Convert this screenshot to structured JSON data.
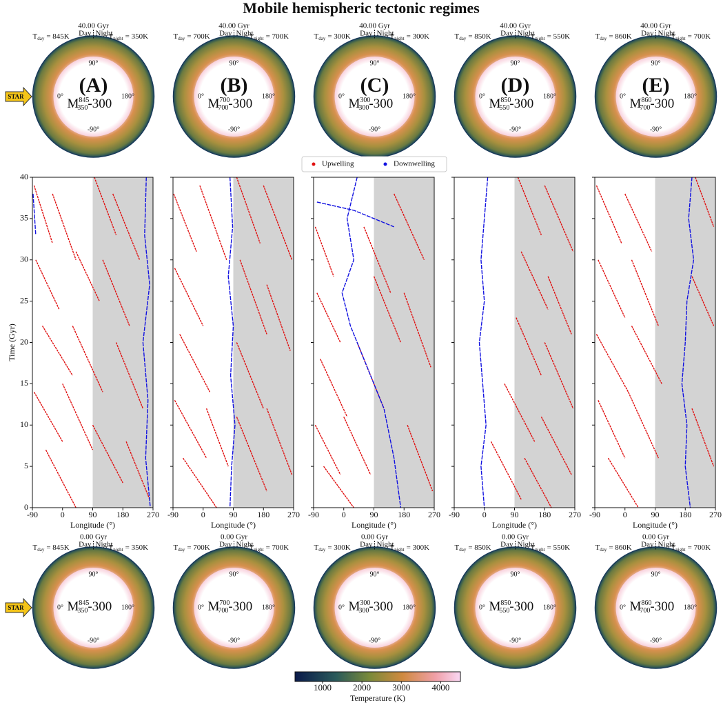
{
  "title": "Mobile hemispheric tectonic regimes",
  "annulus_text": {
    "time_top": "40.00 Gyr",
    "time_bottom": "0.00 Gyr",
    "day": "Day",
    "night": "Night",
    "t": "T",
    "day_sub": "day",
    "night_sub": "night",
    "m": "M",
    "model_suffix": "-300",
    "angles": [
      "90°",
      "0°",
      "180°",
      "-90°"
    ],
    "star": "STAR"
  },
  "colorbar": {
    "label": "Temperature (K)",
    "lim": [
      300,
      4500
    ],
    "ticks": [
      1000,
      2000,
      3000,
      4000
    ]
  },
  "chart_data": [
    {
      "type": "streak",
      "label": "(A)",
      "t_day": "= 845K",
      "t_night": "= 350K",
      "model_sup": "845",
      "model_sub": "350",
      "xlabel": "Longitude (°)",
      "ylabel": "Time (Gyr)",
      "xlim": [
        -90,
        270
      ],
      "ylim": [
        0,
        40
      ],
      "xticks": [
        -90,
        0,
        90,
        180,
        270
      ],
      "yticks": [
        0,
        5,
        10,
        15,
        20,
        25,
        30,
        35,
        40
      ],
      "show_ytick_labels": true,
      "shade": [
        90,
        270
      ],
      "series": [
        {
          "name": "Upwelling",
          "color": "#e01010",
          "streaks": [
            {
              "x": [
                -85,
                -30
              ],
              "y": [
                39,
                32
              ]
            },
            {
              "x": [
                -30,
                40
              ],
              "y": [
                38,
                30
              ]
            },
            {
              "x": [
                95,
                160
              ],
              "y": [
                40,
                33
              ]
            },
            {
              "x": [
                150,
                230
              ],
              "y": [
                38,
                30
              ]
            },
            {
              "x": [
                -80,
                -10
              ],
              "y": [
                30,
                24
              ]
            },
            {
              "x": [
                40,
                110
              ],
              "y": [
                31,
                25
              ]
            },
            {
              "x": [
                120,
                200
              ],
              "y": [
                30,
                22
              ]
            },
            {
              "x": [
                -60,
                30
              ],
              "y": [
                22,
                16
              ]
            },
            {
              "x": [
                30,
                120
              ],
              "y": [
                22,
                14
              ]
            },
            {
              "x": [
                160,
                240
              ],
              "y": [
                20,
                12
              ]
            },
            {
              "x": [
                -85,
                0
              ],
              "y": [
                14,
                8
              ]
            },
            {
              "x": [
                0,
                90
              ],
              "y": [
                15,
                7
              ]
            },
            {
              "x": [
                90,
                180
              ],
              "y": [
                10,
                3
              ]
            },
            {
              "x": [
                -50,
                40
              ],
              "y": [
                7,
                0
              ]
            },
            {
              "x": [
                190,
                260
              ],
              "y": [
                8,
                1
              ]
            }
          ]
        },
        {
          "name": "Downwelling",
          "color": "#1010e0",
          "streaks": [
            {
              "x": [
                250,
                245,
                260,
                240,
                255,
                248,
                262
              ],
              "y": [
                40,
                33,
                27,
                20,
                13,
                6,
                0
              ]
            },
            {
              "x": [
                -88,
                -80
              ],
              "y": [
                38,
                33
              ]
            }
          ]
        }
      ]
    },
    {
      "type": "streak",
      "label": "(B)",
      "t_day": "= 700K",
      "t_night": "= 700K",
      "model_sup": "700",
      "model_sub": "700",
      "xlabel": "Longitude (°)",
      "xlim": [
        -90,
        270
      ],
      "ylim": [
        0,
        40
      ],
      "xticks": [
        -90,
        0,
        90,
        180,
        270
      ],
      "yticks": [
        0,
        5,
        10,
        15,
        20,
        25,
        30,
        35,
        40
      ],
      "show_ytick_labels": false,
      "shade": [
        90,
        270
      ],
      "series": [
        {
          "name": "Upwelling",
          "color": "#e01010",
          "streaks": [
            {
              "x": [
                -88,
                -20
              ],
              "y": [
                38,
                31
              ]
            },
            {
              "x": [
                -10,
                70
              ],
              "y": [
                39,
                30
              ]
            },
            {
              "x": [
                100,
                170
              ],
              "y": [
                40,
                32
              ]
            },
            {
              "x": [
                180,
                265
              ],
              "y": [
                39,
                30
              ]
            },
            {
              "x": [
                -85,
                0
              ],
              "y": [
                29,
                22
              ]
            },
            {
              "x": [
                110,
                190
              ],
              "y": [
                30,
                21
              ]
            },
            {
              "x": [
                190,
                260
              ],
              "y": [
                27,
                19
              ]
            },
            {
              "x": [
                -70,
                20
              ],
              "y": [
                21,
                14
              ]
            },
            {
              "x": [
                100,
                180
              ],
              "y": [
                20,
                12
              ]
            },
            {
              "x": [
                -85,
                10
              ],
              "y": [
                13,
                6
              ]
            },
            {
              "x": [
                10,
                75
              ],
              "y": [
                12,
                5
              ]
            },
            {
              "x": [
                100,
                190
              ],
              "y": [
                11,
                2
              ]
            },
            {
              "x": [
                190,
                265
              ],
              "y": [
                12,
                4
              ]
            },
            {
              "x": [
                -60,
                40
              ],
              "y": [
                6,
                0
              ]
            }
          ]
        },
        {
          "name": "Downwelling",
          "color": "#1010e0",
          "streaks": [
            {
              "x": [
                80,
                88,
                75,
                90,
                82,
                95,
                85,
                80
              ],
              "y": [
                40,
                34,
                28,
                22,
                16,
                10,
                5,
                0
              ]
            }
          ]
        }
      ]
    },
    {
      "type": "streak",
      "label": "(C)",
      "t_day": "= 300K",
      "t_night": "= 300K",
      "model_sup": "300",
      "model_sub": "300",
      "xlabel": "Longitude (°)",
      "xlim": [
        -90,
        270
      ],
      "ylim": [
        0,
        40
      ],
      "xticks": [
        -90,
        0,
        90,
        180,
        270
      ],
      "yticks": [
        0,
        5,
        10,
        15,
        20,
        25,
        30,
        35,
        40
      ],
      "show_ytick_labels": false,
      "shade": [
        90,
        270
      ],
      "series": [
        {
          "name": "Upwelling",
          "color": "#e01010",
          "streaks": [
            {
              "x": [
                -85,
                -30
              ],
              "y": [
                34,
                28
              ]
            },
            {
              "x": [
                60,
                140
              ],
              "y": [
                34,
                26
              ]
            },
            {
              "x": [
                150,
                240
              ],
              "y": [
                38,
                30
              ]
            },
            {
              "x": [
                -80,
                -10
              ],
              "y": [
                26,
                20
              ]
            },
            {
              "x": [
                90,
                170
              ],
              "y": [
                28,
                20
              ]
            },
            {
              "x": [
                180,
                260
              ],
              "y": [
                26,
                17
              ]
            },
            {
              "x": [
                -70,
                10
              ],
              "y": [
                18,
                11
              ]
            },
            {
              "x": [
                40,
                120
              ],
              "y": [
                20,
                12
              ]
            },
            {
              "x": [
                -85,
                -10
              ],
              "y": [
                10,
                4
              ]
            },
            {
              "x": [
                0,
                80
              ],
              "y": [
                11,
                4
              ]
            },
            {
              "x": [
                190,
                265
              ],
              "y": [
                10,
                2
              ]
            },
            {
              "x": [
                -60,
                30
              ],
              "y": [
                5,
                0
              ]
            }
          ]
        },
        {
          "name": "Downwelling",
          "color": "#1010e0",
          "streaks": [
            {
              "x": [
                40,
                10,
                30,
                -5,
                20,
                60,
                120,
                150,
                170
              ],
              "y": [
                40,
                35,
                30,
                26,
                22,
                18,
                12,
                6,
                0
              ]
            },
            {
              "x": [
                -80,
                30,
                150
              ],
              "y": [
                37,
                36,
                34
              ]
            }
          ]
        }
      ]
    },
    {
      "type": "streak",
      "label": "(D)",
      "t_day": "= 850K",
      "t_night": "= 550K",
      "model_sup": "850",
      "model_sub": "550",
      "xlabel": "Longitude (°)",
      "xlim": [
        -90,
        270
      ],
      "ylim": [
        0,
        40
      ],
      "xticks": [
        -90,
        0,
        90,
        180,
        270
      ],
      "yticks": [
        0,
        5,
        10,
        15,
        20,
        25,
        30,
        35,
        40
      ],
      "show_ytick_labels": false,
      "shade": [
        90,
        270
      ],
      "series": [
        {
          "name": "Upwelling",
          "color": "#e01010",
          "streaks": [
            {
              "x": [
                100,
                170
              ],
              "y": [
                40,
                33
              ]
            },
            {
              "x": [
                180,
                265
              ],
              "y": [
                39,
                31
              ]
            },
            {
              "x": [
                110,
                190
              ],
              "y": [
                31,
                24
              ]
            },
            {
              "x": [
                190,
                260
              ],
              "y": [
                28,
                21
              ]
            },
            {
              "x": [
                95,
                170
              ],
              "y": [
                23,
                16
              ]
            },
            {
              "x": [
                180,
                265
              ],
              "y": [
                20,
                12
              ]
            },
            {
              "x": [
                60,
                150
              ],
              "y": [
                15,
                8
              ]
            },
            {
              "x": [
                170,
                260
              ],
              "y": [
                11,
                4
              ]
            },
            {
              "x": [
                20,
                110
              ],
              "y": [
                8,
                1
              ]
            },
            {
              "x": [
                120,
                200
              ],
              "y": [
                6,
                0
              ]
            }
          ]
        },
        {
          "name": "Downwelling",
          "color": "#1010e0",
          "streaks": [
            {
              "x": [
                10,
                0,
                -10,
                0,
                -15,
                -5,
                5,
                -10,
                0
              ],
              "y": [
                40,
                35,
                30,
                25,
                20,
                15,
                10,
                5,
                0
              ]
            }
          ]
        }
      ]
    },
    {
      "type": "streak",
      "label": "(E)",
      "t_day": "= 860K",
      "t_night": "= 700K",
      "model_sup": "860",
      "model_sub": "700",
      "xlabel": "Longitude (°)",
      "xlim": [
        -90,
        270
      ],
      "ylim": [
        0,
        40
      ],
      "xticks": [
        -90,
        0,
        90,
        180,
        270
      ],
      "yticks": [
        0,
        5,
        10,
        15,
        20,
        25,
        30,
        35,
        40
      ],
      "show_ytick_labels": false,
      "shade": [
        90,
        270
      ],
      "series": [
        {
          "name": "Upwelling",
          "color": "#e01010",
          "streaks": [
            {
              "x": [
                -85,
                -10
              ],
              "y": [
                39,
                32
              ]
            },
            {
              "x": [
                0,
                80
              ],
              "y": [
                38,
                31
              ]
            },
            {
              "x": [
                210,
                265
              ],
              "y": [
                40,
                34
              ]
            },
            {
              "x": [
                -80,
                0
              ],
              "y": [
                30,
                23
              ]
            },
            {
              "x": [
                20,
                100
              ],
              "y": [
                30,
                22
              ]
            },
            {
              "x": [
                200,
                265
              ],
              "y": [
                28,
                22
              ]
            },
            {
              "x": [
                -85,
                10
              ],
              "y": [
                21,
                14
              ]
            },
            {
              "x": [
                20,
                110
              ],
              "y": [
                22,
                15
              ]
            },
            {
              "x": [
                -80,
                0
              ],
              "y": [
                13,
                6
              ]
            },
            {
              "x": [
                10,
                100
              ],
              "y": [
                14,
                6
              ]
            },
            {
              "x": [
                200,
                265
              ],
              "y": [
                12,
                5
              ]
            },
            {
              "x": [
                -50,
                40
              ],
              "y": [
                6,
                0
              ]
            }
          ]
        },
        {
          "name": "Downwelling",
          "color": "#1010e0",
          "streaks": [
            {
              "x": [
                200,
                190,
                205,
                185,
                180,
                170,
                185,
                180,
                195
              ],
              "y": [
                40,
                35,
                30,
                25,
                20,
                15,
                10,
                5,
                0
              ]
            }
          ]
        }
      ]
    }
  ]
}
